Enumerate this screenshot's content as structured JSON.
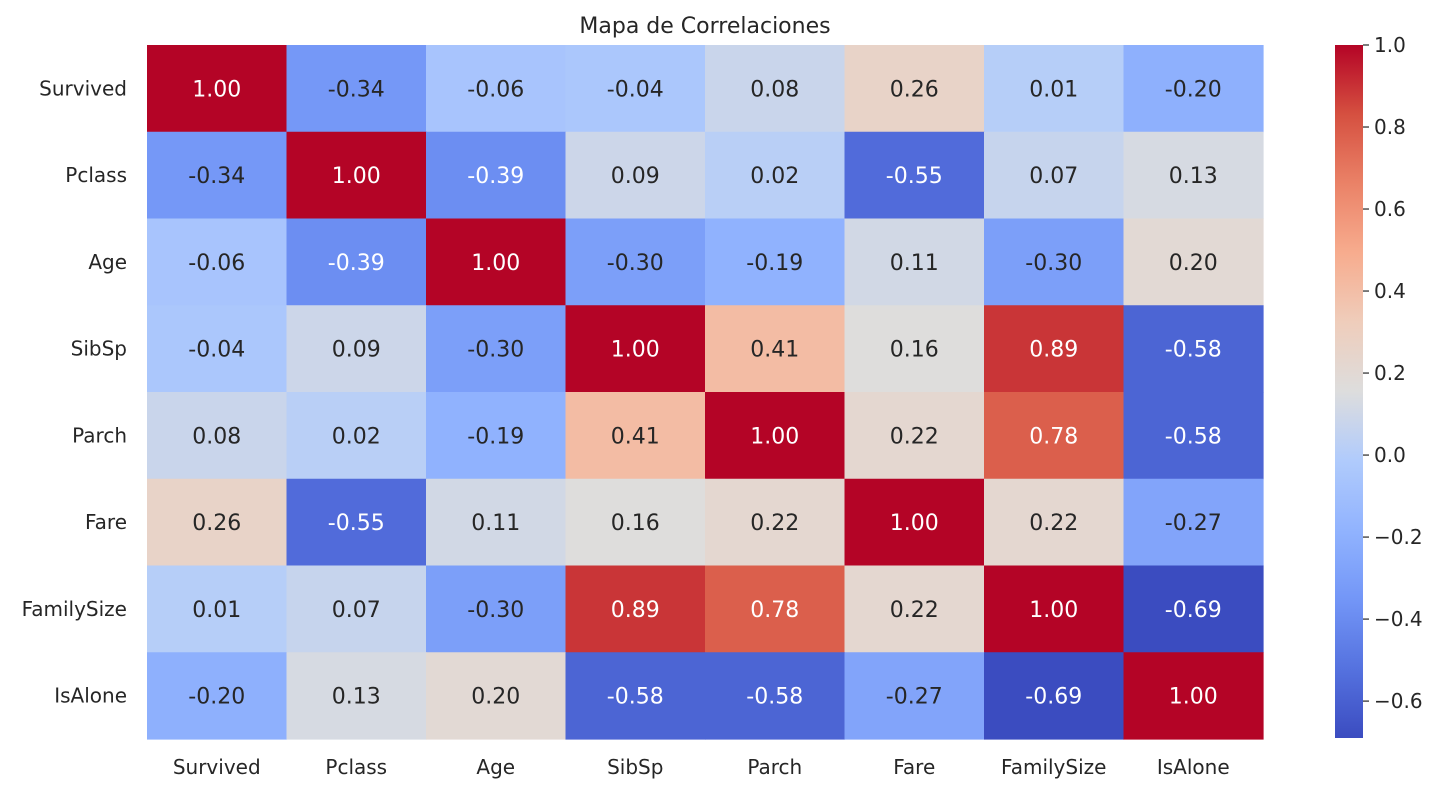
{
  "chart_data": {
    "type": "heatmap",
    "title": "Mapa de Correlaciones",
    "x_categories": [
      "Survived",
      "Pclass",
      "Age",
      "SibSp",
      "Parch",
      "Fare",
      "FamilySize",
      "IsAlone"
    ],
    "y_categories": [
      "Survived",
      "Pclass",
      "Age",
      "SibSp",
      "Parch",
      "Fare",
      "FamilySize",
      "IsAlone"
    ],
    "values": [
      [
        1.0,
        -0.34,
        -0.06,
        -0.04,
        0.08,
        0.26,
        0.01,
        -0.2
      ],
      [
        -0.34,
        1.0,
        -0.39,
        0.09,
        0.02,
        -0.55,
        0.07,
        0.13
      ],
      [
        -0.06,
        -0.39,
        1.0,
        -0.3,
        -0.19,
        0.11,
        -0.3,
        0.2
      ],
      [
        -0.04,
        0.09,
        -0.3,
        1.0,
        0.41,
        0.16,
        0.89,
        -0.58
      ],
      [
        0.08,
        0.02,
        -0.19,
        0.41,
        1.0,
        0.22,
        0.78,
        -0.58
      ],
      [
        0.26,
        -0.55,
        0.11,
        0.16,
        0.22,
        1.0,
        0.22,
        -0.27
      ],
      [
        0.01,
        0.07,
        -0.3,
        0.89,
        0.78,
        0.22,
        1.0,
        -0.69
      ],
      [
        -0.2,
        0.13,
        0.2,
        -0.58,
        -0.58,
        -0.27,
        -0.69,
        1.0
      ]
    ],
    "cell_labels": [
      [
        "1.00",
        "-0.34",
        "-0.06",
        "-0.04",
        "0.08",
        "0.26",
        "0.01",
        "-0.20"
      ],
      [
        "-0.34",
        "1.00",
        "-0.39",
        "0.09",
        "0.02",
        "-0.55",
        "0.07",
        "0.13"
      ],
      [
        "-0.06",
        "-0.39",
        "1.00",
        "-0.30",
        "-0.19",
        "0.11",
        "-0.30",
        "0.20"
      ],
      [
        "-0.04",
        "0.09",
        "-0.30",
        "1.00",
        "0.41",
        "0.16",
        "0.89",
        "-0.58"
      ],
      [
        "0.08",
        "0.02",
        "-0.19",
        "0.41",
        "1.00",
        "0.22",
        "0.78",
        "-0.58"
      ],
      [
        "0.26",
        "-0.55",
        "0.11",
        "0.16",
        "0.22",
        "1.00",
        "0.22",
        "-0.27"
      ],
      [
        "0.01",
        "0.07",
        "-0.30",
        "0.89",
        "0.78",
        "0.22",
        "1.00",
        "-0.69"
      ],
      [
        "-0.20",
        "0.13",
        "0.20",
        "-0.58",
        "-0.58",
        "-0.27",
        "-0.69",
        "1.00"
      ]
    ],
    "colormap": "coolwarm",
    "color_range": [
      -0.69,
      1.0
    ],
    "colorbar": {
      "ticks": [
        1.0,
        0.8,
        0.6,
        0.4,
        0.2,
        0.0,
        -0.2,
        -0.4,
        -0.6
      ],
      "tick_labels": [
        "1.0",
        "0.8",
        "0.6",
        "0.4",
        "0.2",
        "0.0",
        "−0.2",
        "−0.4",
        "−0.6"
      ]
    },
    "grid": false,
    "legend": "colorbar-right"
  }
}
